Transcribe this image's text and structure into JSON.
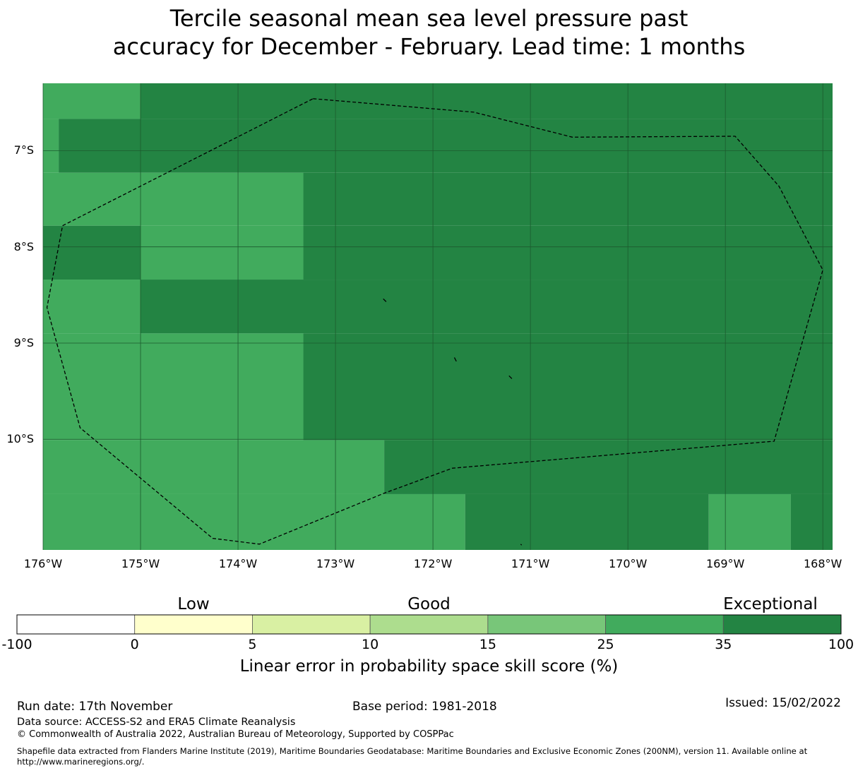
{
  "title_line1": "Tercile seasonal mean sea level pressure past",
  "title_line2": "accuracy for December - February. Lead time: 1 months",
  "map": {
    "lon_range": [
      -176.0,
      -167.9
    ],
    "lat_range": [
      -11.15,
      -6.3
    ],
    "lat_ticks": [
      {
        "value": -7,
        "label": "7°S"
      },
      {
        "value": -8,
        "label": "8°S"
      },
      {
        "value": -9,
        "label": "9°S"
      },
      {
        "value": -10,
        "label": "10°S"
      }
    ],
    "lon_ticks": [
      {
        "value": -176,
        "label": "176°W"
      },
      {
        "value": -175,
        "label": "175°W"
      },
      {
        "value": -174,
        "label": "174°W"
      },
      {
        "value": -173,
        "label": "173°W"
      },
      {
        "value": -172,
        "label": "172°W"
      },
      {
        "value": -171,
        "label": "171°W"
      },
      {
        "value": -170,
        "label": "170°W"
      },
      {
        "value": -169,
        "label": "169°W"
      },
      {
        "value": -168,
        "label": "168°W"
      }
    ],
    "grid_color": "#1c5a2e",
    "cells": [
      {
        "lon0": -176.0,
        "lon1": -175.0,
        "lat0": -6.3,
        "lat1": -6.67,
        "category": "25-35"
      },
      {
        "lon0": -175.0,
        "lon1": -167.9,
        "lat0": -6.3,
        "lat1": -6.67,
        "category": "35-100"
      },
      {
        "lon0": -176.0,
        "lon1": -175.84,
        "lat0": -6.67,
        "lat1": -7.23,
        "category": "25-35"
      },
      {
        "lon0": -175.84,
        "lon1": -167.9,
        "lat0": -6.67,
        "lat1": -7.23,
        "category": "35-100"
      },
      {
        "lon0": -176.0,
        "lon1": -173.33,
        "lat0": -7.23,
        "lat1": -7.78,
        "category": "25-35"
      },
      {
        "lon0": -173.33,
        "lon1": -167.9,
        "lat0": -7.23,
        "lat1": -7.78,
        "category": "35-100"
      },
      {
        "lon0": -176.0,
        "lon1": -175.0,
        "lat0": -7.78,
        "lat1": -8.34,
        "category": "35-100"
      },
      {
        "lon0": -175.0,
        "lon1": -173.33,
        "lat0": -7.78,
        "lat1": -8.34,
        "category": "25-35"
      },
      {
        "lon0": -173.33,
        "lon1": -167.9,
        "lat0": -7.78,
        "lat1": -8.34,
        "category": "35-100"
      },
      {
        "lon0": -176.0,
        "lon1": -175.0,
        "lat0": -8.34,
        "lat1": -8.9,
        "category": "25-35"
      },
      {
        "lon0": -175.0,
        "lon1": -167.9,
        "lat0": -8.34,
        "lat1": -8.9,
        "category": "35-100"
      },
      {
        "lon0": -176.0,
        "lon1": -173.33,
        "lat0": -8.9,
        "lat1": -10.01,
        "category": "25-35"
      },
      {
        "lon0": -173.33,
        "lon1": -167.9,
        "lat0": -8.9,
        "lat1": -10.01,
        "category": "35-100"
      },
      {
        "lon0": -176.0,
        "lon1": -172.5,
        "lat0": -10.01,
        "lat1": -10.57,
        "category": "25-35"
      },
      {
        "lon0": -172.5,
        "lon1": -167.9,
        "lat0": -10.01,
        "lat1": -10.57,
        "category": "35-100"
      },
      {
        "lon0": -176.0,
        "lon1": -171.67,
        "lat0": -10.57,
        "lat1": -11.15,
        "category": "25-35"
      },
      {
        "lon0": -171.67,
        "lon1": -169.17,
        "lat0": -10.57,
        "lat1": -11.15,
        "category": "35-100"
      },
      {
        "lon0": -169.17,
        "lon1": -168.33,
        "lat0": -10.57,
        "lat1": -11.15,
        "category": "25-35"
      },
      {
        "lon0": -168.33,
        "lon1": -167.9,
        "lat0": -10.57,
        "lat1": -11.15,
        "category": "35-100"
      }
    ],
    "eez_boundary": [
      [
        -173.23,
        -6.46
      ],
      [
        -171.58,
        -6.6
      ],
      [
        -170.57,
        -6.86
      ],
      [
        -168.9,
        -6.85
      ],
      [
        -168.45,
        -7.37
      ],
      [
        -168.0,
        -8.24
      ],
      [
        -168.5,
        -10.02
      ],
      [
        -171.8,
        -10.3
      ],
      [
        -172.5,
        -10.56
      ],
      [
        -173.78,
        -11.09
      ],
      [
        -174.26,
        -11.03
      ],
      [
        -175.62,
        -9.88
      ],
      [
        -175.96,
        -8.63
      ],
      [
        -175.8,
        -7.78
      ],
      [
        -173.23,
        -6.46
      ]
    ],
    "islands": [
      [
        [
          -172.51,
          -8.54
        ],
        [
          -172.48,
          -8.57
        ]
      ],
      [
        [
          -171.78,
          -9.15
        ],
        [
          -171.76,
          -9.19
        ]
      ],
      [
        [
          -171.22,
          -9.34
        ],
        [
          -171.19,
          -9.37
        ]
      ],
      [
        [
          -171.1,
          -11.09
        ],
        [
          -171.09,
          -11.1
        ]
      ]
    ]
  },
  "colorbar": {
    "category_labels": [
      "Low",
      "Good",
      "Exceptional"
    ],
    "bins": [
      {
        "from": -100,
        "to": 0,
        "color": "#ffffff"
      },
      {
        "from": 0,
        "to": 5,
        "color": "#ffffcc"
      },
      {
        "from": 5,
        "to": 10,
        "color": "#d9f0a3"
      },
      {
        "from": 10,
        "to": 15,
        "color": "#addd8e"
      },
      {
        "from": 15,
        "to": 25,
        "color": "#78c679"
      },
      {
        "from": 25,
        "to": 35,
        "color": "#41ab5d"
      },
      {
        "from": 35,
        "to": 100,
        "color": "#238443"
      }
    ],
    "tick_labels": [
      "-100",
      "0",
      "5",
      "10",
      "15",
      "25",
      "35",
      "100"
    ],
    "title": "Linear error in probability space skill score (%)"
  },
  "category_colors": {
    "25-35": "#41ab5d",
    "35-100": "#238443"
  },
  "footer": {
    "run_date": "Run date: 17th November",
    "base_period": "Base period: 1981-2018",
    "issued": "Issued: 15/02/2022",
    "data_source": "Data source: ACCESS-S2 and ERA5 Climate Reanalysis",
    "copyright": "© Commonwealth of Australia 2022, Australian Bureau of Meteorology, Supported by COSPPac",
    "shapefile_line1": "Shapefile data extracted from Flanders Marine Institute (2019), Maritime Boundaries Geodatabase: Maritime Boundaries and Exclusive Economic Zones (200NM), version 11. Available online at",
    "shapefile_line2": "http://www.marineregions.org/."
  }
}
